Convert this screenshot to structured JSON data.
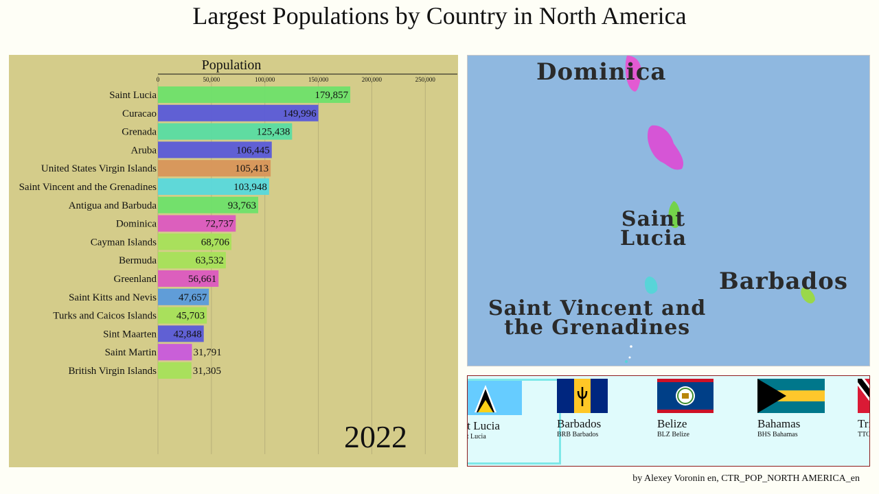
{
  "page": {
    "title": "Largest Populations by Country in North America",
    "year": "2022",
    "credit": "by Alexey Voronin en, CTR_POP_NORTH AMERICA_en"
  },
  "chart_data": {
    "type": "bar",
    "orientation": "horizontal",
    "title": "Population",
    "xlim": [
      0,
      280000
    ],
    "ticks": [
      "0",
      "50,000",
      "100,000",
      "150,000",
      "200,000",
      "250,000"
    ],
    "tick_values": [
      0,
      50000,
      100000,
      150000,
      200000,
      250000
    ],
    "grid": true,
    "categories": [
      "Saint Lucia",
      "Curacao",
      "Grenada",
      "Aruba",
      "United States Virgin Islands",
      "Saint Vincent and the Grenadines",
      "Antigua and Barbuda",
      "Dominica",
      "Cayman Islands",
      "Bermuda",
      "Greenland",
      "Saint Kitts and Nevis",
      "Turks and Caicos Islands",
      "Sint Maarten",
      "Saint Martin",
      "British Virgin Islands"
    ],
    "values": [
      179857,
      149996,
      125438,
      106445,
      105413,
      103948,
      93763,
      72737,
      68706,
      63532,
      56661,
      47657,
      45703,
      42848,
      31791,
      31305
    ],
    "labels": [
      "179,857",
      "149,996",
      "125,438",
      "106,445",
      "105,413",
      "103,948",
      "93,763",
      "72,737",
      "68,706",
      "63,532",
      "56,661",
      "47,657",
      "45,703",
      "42,848",
      "31,791",
      "31,305"
    ],
    "colors": [
      "#6ee06a",
      "#5a5ad8",
      "#58dca2",
      "#5a5ad8",
      "#d8955a",
      "#58d8dc",
      "#6ee06a",
      "#dc58c0",
      "#a6e05a",
      "#a6e05a",
      "#dc58c0",
      "#5a9adc",
      "#a6e05a",
      "#5a5ad8",
      "#c858dc",
      "#a6e05a"
    ]
  },
  "map": {
    "labels": [
      "Dominica",
      "Saint\nLucia",
      "Barbados",
      "Saint Vincent and\nthe Grenadines"
    ]
  },
  "flags": [
    {
      "name": "Saint Lucia",
      "code": "LCA Saint Lucia",
      "icon": "saint-lucia-flag",
      "active": true
    },
    {
      "name": "Barbados",
      "code": "BRB Barbados",
      "icon": "barbados-flag",
      "active": false
    },
    {
      "name": "Belize",
      "code": "BLZ Belize",
      "icon": "belize-flag",
      "active": false
    },
    {
      "name": "Bahamas",
      "code": "BHS Bahamas",
      "icon": "bahamas-flag",
      "active": false
    },
    {
      "name": "Trinidad and Tobago",
      "code": "TTO Trinidad and Tobago",
      "icon": "trinidad-flag",
      "active": false
    }
  ]
}
